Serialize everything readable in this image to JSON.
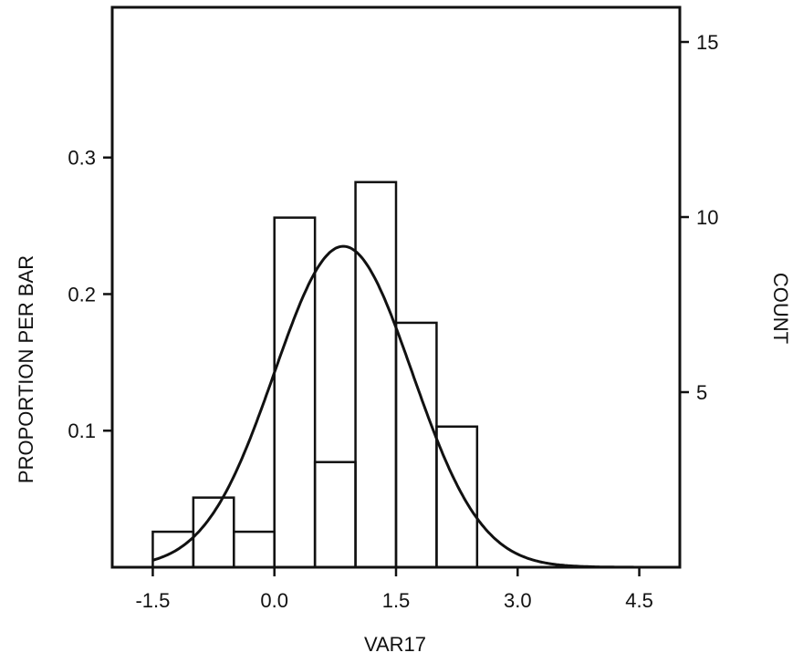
{
  "chart_data": {
    "type": "bar",
    "subtype": "histogram",
    "xlabel": "VAR17",
    "ylabel_left": "PROPORTION PER BAR",
    "ylabel_right": "COUNT",
    "x_ticks": [
      "-1.5",
      "0.0",
      "1.5",
      "3.0",
      "4.5"
    ],
    "x_tick_values": [
      -1.5,
      0.0,
      1.5,
      3.0,
      4.5
    ],
    "y_left_ticks": [
      "0.1",
      "0.2",
      "0.3"
    ],
    "y_left_tick_values": [
      0.1,
      0.2,
      0.3
    ],
    "y_right_ticks": [
      "5",
      "10",
      "15"
    ],
    "y_right_tick_values": [
      5,
      10,
      15
    ],
    "xlim": [
      -2.0,
      5.0
    ],
    "ylim_proportion": [
      0,
      0.41
    ],
    "total_count": 39,
    "bin_width": 0.5,
    "bins": [
      {
        "start": -1.5,
        "end": -1.0,
        "proportion": 0.026,
        "count": 1
      },
      {
        "start": -1.0,
        "end": -0.5,
        "proportion": 0.051,
        "count": 2
      },
      {
        "start": -0.5,
        "end": 0.0,
        "proportion": 0.026,
        "count": 1
      },
      {
        "start": 0.0,
        "end": 0.5,
        "proportion": 0.256,
        "count": 10
      },
      {
        "start": 0.5,
        "end": 1.0,
        "proportion": 0.077,
        "count": 3
      },
      {
        "start": 1.0,
        "end": 1.5,
        "proportion": 0.282,
        "count": 11
      },
      {
        "start": 1.5,
        "end": 2.0,
        "proportion": 0.179,
        "count": 7
      },
      {
        "start": 2.0,
        "end": 2.5,
        "proportion": 0.103,
        "count": 4
      }
    ],
    "normal_curve": {
      "mean": 0.85,
      "sd": 0.85,
      "peak_proportion": 0.235
    },
    "grid": false,
    "legend": "none"
  },
  "colors": {
    "ink": "#111111",
    "background": "#ffffff"
  }
}
